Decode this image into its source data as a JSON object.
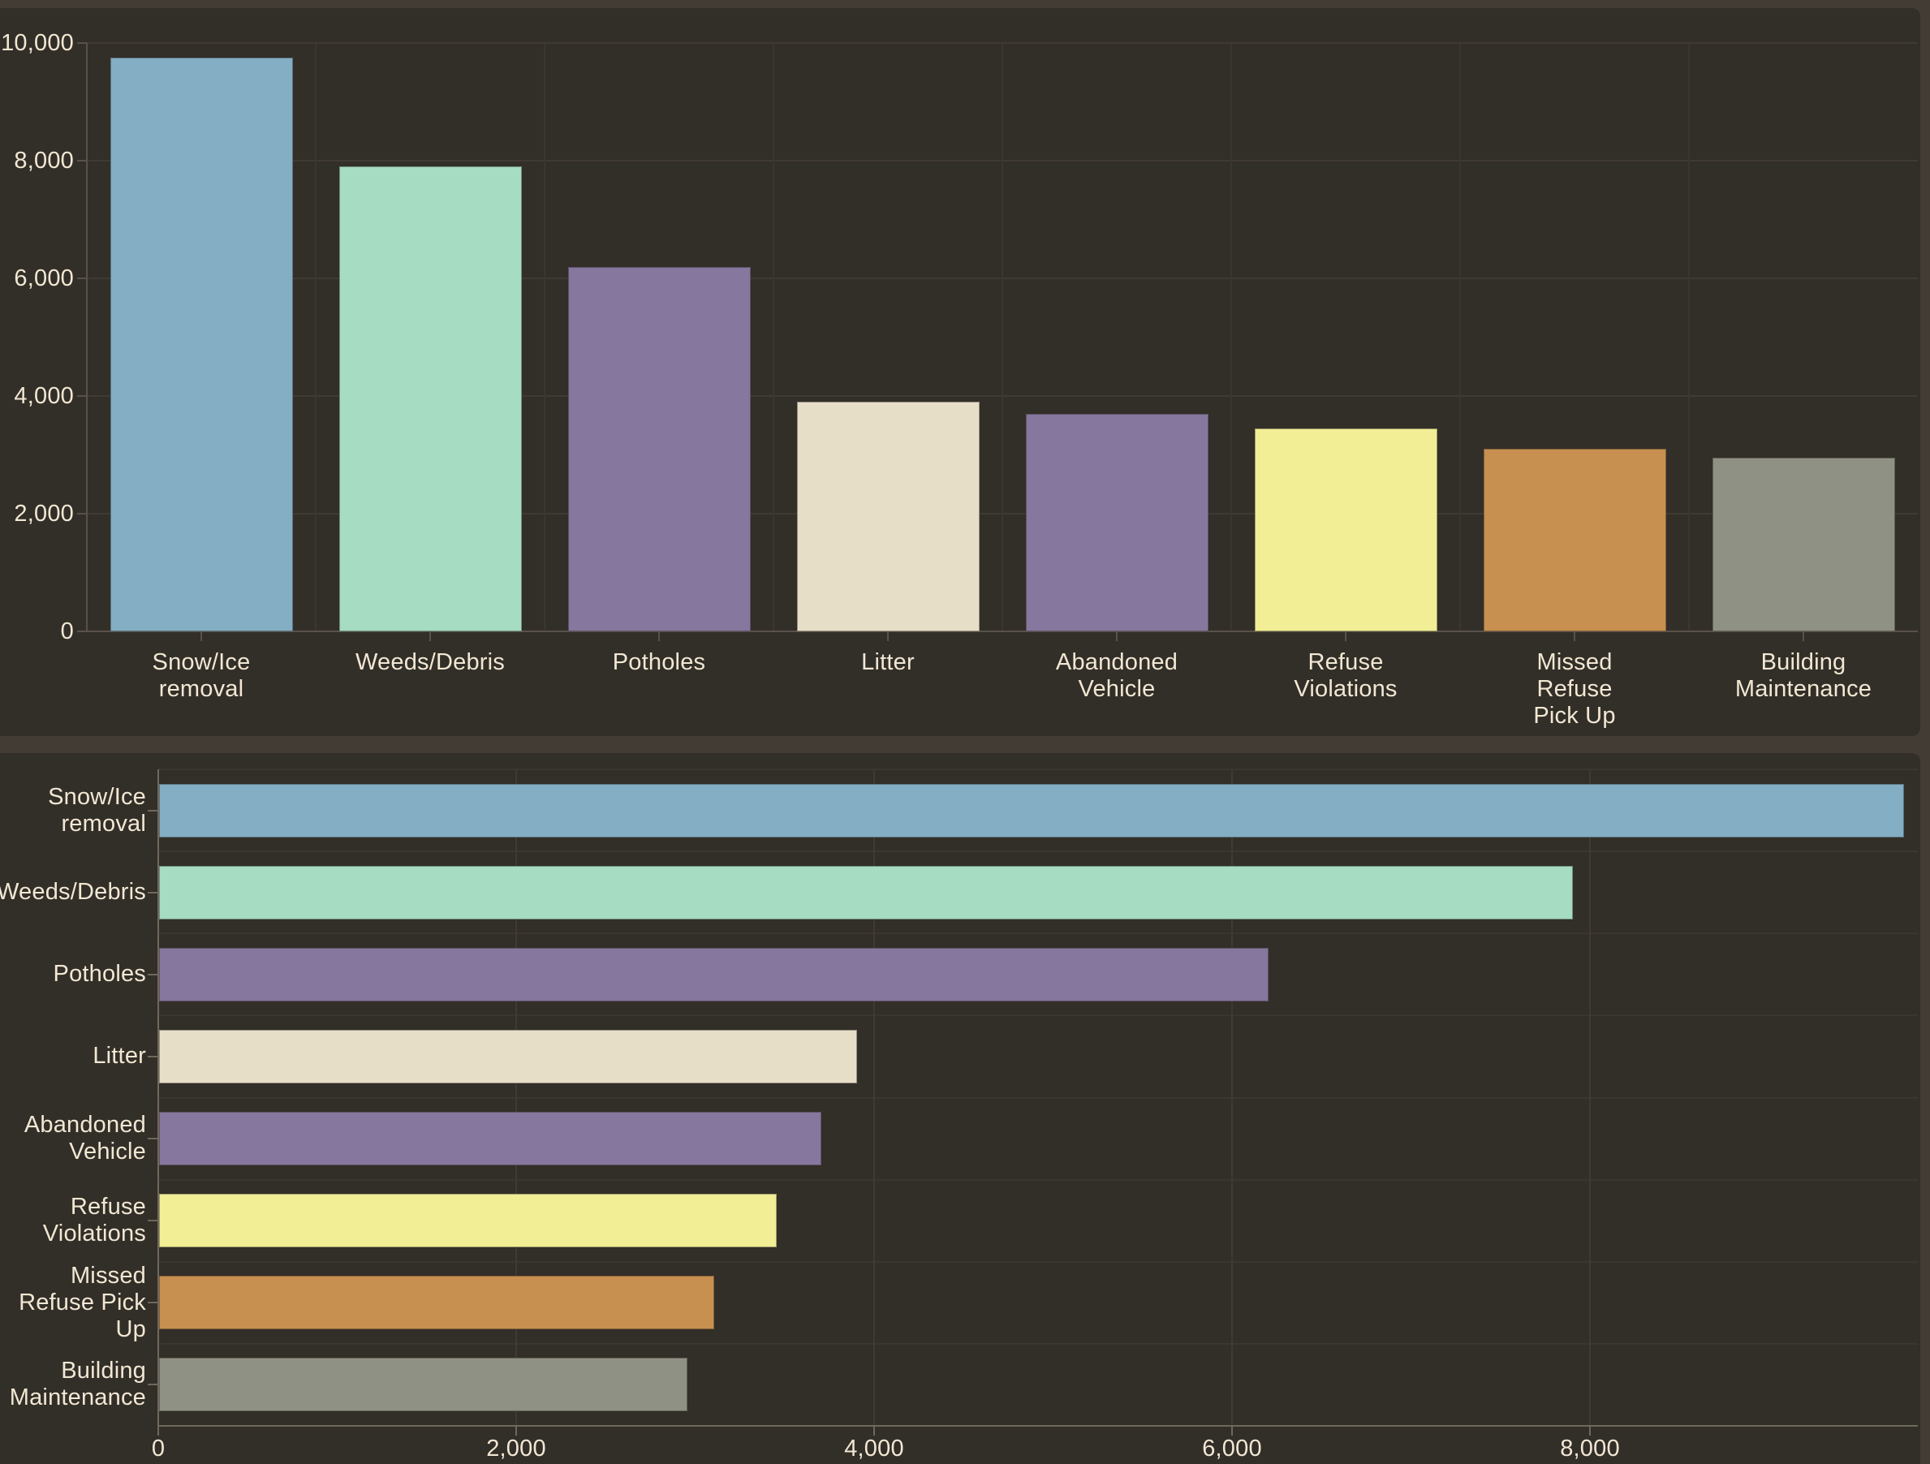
{
  "theme": {
    "outer_background": "#433c35",
    "panel_background": "#322e28",
    "text_color": "#f1e7d3",
    "grid_faint_color": "#3b362f",
    "grid_value_color": "#403a32",
    "top_axis_color": "#59524a",
    "bottom_axis_color": "#6f685c"
  },
  "chart_data": [
    {
      "type": "bar",
      "orientation": "vertical",
      "title": "",
      "categories": [
        "Snow/Ice removal",
        "Weeds/Debris",
        "Potholes",
        "Litter",
        "Abandoned Vehicle",
        "Refuse Violations",
        "Missed Refuse Pick Up",
        "Building Maintenance"
      ],
      "category_label_lines": [
        [
          "Snow/Ice",
          "removal"
        ],
        [
          "Weeds/Debris"
        ],
        [
          "Potholes"
        ],
        [
          "Litter"
        ],
        [
          "Abandoned",
          "Vehicle"
        ],
        [
          "Refuse",
          "Violations"
        ],
        [
          "Missed",
          "Refuse",
          "Pick Up"
        ],
        [
          "Building",
          "Maintenance"
        ]
      ],
      "values": [
        9750,
        7900,
        6200,
        3900,
        3700,
        3450,
        3100,
        2950
      ],
      "bar_colors": [
        "#83aec3",
        "#a5dcc2",
        "#85779d",
        "#e7dec8",
        "#85779d",
        "#f2ee96",
        "#c78f50",
        "#8f9184"
      ],
      "ylim": [
        0,
        10000
      ],
      "grid": true,
      "legend": false,
      "y_ticks": [
        {
          "value": 0,
          "label": "0"
        },
        {
          "value": 2000,
          "label": "2,000"
        },
        {
          "value": 4000,
          "label": "4,000"
        },
        {
          "value": 6000,
          "label": "6,000"
        },
        {
          "value": 8000,
          "label": "8,000"
        },
        {
          "value": 10000,
          "label": "10,000"
        }
      ]
    },
    {
      "type": "bar",
      "orientation": "horizontal",
      "title": "",
      "categories": [
        "Snow/Ice removal",
        "Weeds/Debris",
        "Potholes",
        "Litter",
        "Abandoned Vehicle",
        "Refuse Violations",
        "Missed Refuse Pick Up",
        "Building Maintenance"
      ],
      "category_label_lines": [
        [
          "Snow/Ice",
          "removal"
        ],
        [
          "Weeds/Debris"
        ],
        [
          "Potholes"
        ],
        [
          "Litter"
        ],
        [
          "Abandoned",
          "Vehicle"
        ],
        [
          "Refuse",
          "Violations"
        ],
        [
          "Missed",
          "Refuse Pick",
          "Up"
        ],
        [
          "Building",
          "Maintenance"
        ]
      ],
      "values": [
        9750,
        7900,
        6200,
        3900,
        3700,
        3450,
        3100,
        2950
      ],
      "bar_colors": [
        "#83aec3",
        "#a5dcc2",
        "#85779d",
        "#e7dec8",
        "#85779d",
        "#f2ee96",
        "#c78f50",
        "#8f9184"
      ],
      "xlim": [
        0,
        9832
      ],
      "grid": true,
      "legend": false,
      "x_ticks": [
        {
          "value": 0,
          "label": "0"
        },
        {
          "value": 2000,
          "label": "2,000"
        },
        {
          "value": 4000,
          "label": "4,000"
        },
        {
          "value": 6000,
          "label": "6,000"
        },
        {
          "value": 8000,
          "label": "8,000"
        }
      ]
    }
  ]
}
